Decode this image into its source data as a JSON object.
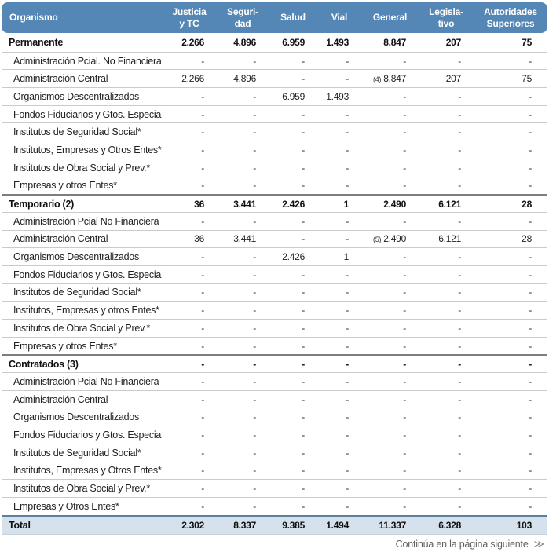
{
  "colors": {
    "header_bg": "#5587b6",
    "header_text": "#ffffff",
    "total_row_bg": "#d5e1ec",
    "total_border": "#5d7e9c",
    "row_separator": "#cbcbcb",
    "section_separator": "#7d7d7d",
    "body_text": "#222222",
    "footer_text": "#5f5f5f"
  },
  "table": {
    "header": {
      "organismo": "Organismo",
      "columns": [
        "Justicia\ny TC",
        "Seguri-\ndad",
        "Salud",
        "Vial",
        "General",
        "Legisla-\ntivo",
        "Autoridades\nSuperiores"
      ]
    },
    "rows": [
      {
        "label": "Permanente",
        "type": "section",
        "values": [
          "2.266",
          "4.896",
          "6.959",
          "1.493",
          "8.847",
          "207",
          "75"
        ]
      },
      {
        "label": "Administración Pcial. No Financiera",
        "type": "sub",
        "values": [
          "-",
          "-",
          "-",
          "-",
          "-",
          "-",
          "-"
        ]
      },
      {
        "label": "Administración Central",
        "type": "sub",
        "values": [
          "2.266",
          "4.896",
          "-",
          "-",
          "(4) 8.847",
          "207",
          "75"
        ]
      },
      {
        "label": "Organismos Descentralizados",
        "type": "sub",
        "values": [
          "-",
          "-",
          "6.959",
          "1.493",
          "-",
          "-",
          "-"
        ]
      },
      {
        "label": "Fondos Fiduciarios y Gtos. Especiales",
        "type": "sub",
        "values": [
          "-",
          "-",
          "-",
          "-",
          "-",
          "-",
          "-"
        ]
      },
      {
        "label": "Institutos de Seguridad Social*",
        "type": "sub",
        "values": [
          "-",
          "-",
          "-",
          "-",
          "-",
          "-",
          "-"
        ]
      },
      {
        "label": "Institutos, Empresas y Otros Entes*",
        "type": "sub",
        "values": [
          "-",
          "-",
          "-",
          "-",
          "-",
          "-",
          "-"
        ]
      },
      {
        "label": "Institutos de Obra Social y Prev.*",
        "type": "sub",
        "values": [
          "-",
          "-",
          "-",
          "-",
          "-",
          "-",
          "-"
        ]
      },
      {
        "label": "Empresas y otros Entes*",
        "type": "sub",
        "values": [
          "-",
          "-",
          "-",
          "-",
          "-",
          "-",
          "-"
        ]
      },
      {
        "label": "Temporario (2)",
        "type": "section",
        "values": [
          "36",
          "3.441",
          "2.426",
          "1",
          "2.490",
          "6.121",
          "28"
        ]
      },
      {
        "label": "Administración Pcial No Financiera",
        "type": "sub",
        "values": [
          "-",
          "-",
          "-",
          "-",
          "-",
          "-",
          "-"
        ]
      },
      {
        "label": "Administración Central",
        "type": "sub",
        "values": [
          "36",
          "3.441",
          "-",
          "-",
          "(5) 2.490",
          "6.121",
          "28"
        ]
      },
      {
        "label": "Organismos Descentralizados",
        "type": "sub",
        "values": [
          "-",
          "-",
          "2.426",
          "1",
          "-",
          "-",
          "-"
        ]
      },
      {
        "label": "Fondos Fiduciarios y Gtos. Especiales",
        "type": "sub",
        "values": [
          "-",
          "-",
          "-",
          "-",
          "-",
          "-",
          "-"
        ]
      },
      {
        "label": "Institutos de Seguridad Social*",
        "type": "sub",
        "values": [
          "-",
          "-",
          "-",
          "-",
          "-",
          "-",
          "-"
        ]
      },
      {
        "label": "Institutos, Empresas y otros Entes*",
        "type": "sub",
        "values": [
          "-",
          "-",
          "-",
          "-",
          "-",
          "-",
          "-"
        ]
      },
      {
        "label": "Institutos de Obra Social y Prev.*",
        "type": "sub",
        "values": [
          "-",
          "-",
          "-",
          "-",
          "-",
          "-",
          "-"
        ]
      },
      {
        "label": "Empresas y otros Entes*",
        "type": "sub",
        "values": [
          "-",
          "-",
          "-",
          "-",
          "-",
          "-",
          "-"
        ]
      },
      {
        "label": "Contratados (3)",
        "type": "section",
        "values": [
          "-",
          "-",
          "-",
          "-",
          "-",
          "-",
          "-"
        ]
      },
      {
        "label": "Administración Pcial No Financiera",
        "type": "sub",
        "values": [
          "-",
          "-",
          "-",
          "-",
          "-",
          "-",
          "-"
        ]
      },
      {
        "label": "Administración Central",
        "type": "sub",
        "values": [
          "-",
          "-",
          "-",
          "-",
          "-",
          "-",
          "-"
        ]
      },
      {
        "label": "Organismos Descentralizados",
        "type": "sub",
        "values": [
          "-",
          "-",
          "-",
          "-",
          "-",
          "-",
          "-"
        ]
      },
      {
        "label": "Fondos Fiduciarios y Gtos. Especiales",
        "type": "sub",
        "values": [
          "-",
          "-",
          "-",
          "-",
          "-",
          "-",
          "-"
        ]
      },
      {
        "label": "Institutos de Seguridad Social*",
        "type": "sub",
        "values": [
          "-",
          "-",
          "-",
          "-",
          "-",
          "-",
          "-"
        ]
      },
      {
        "label": "Institutos, Empresas y Otros Entes*",
        "type": "sub",
        "values": [
          "-",
          "-",
          "-",
          "-",
          "-",
          "-",
          "-"
        ]
      },
      {
        "label": "Institutos de Obra Social y Prev.*",
        "type": "sub",
        "values": [
          "-",
          "-",
          "-",
          "-",
          "-",
          "-",
          "-"
        ]
      },
      {
        "label": "Empresas y Otros Entes*",
        "type": "sub",
        "values": [
          "-",
          "-",
          "-",
          "-",
          "-",
          "-",
          "-"
        ]
      }
    ],
    "total": {
      "label": "Total",
      "values": [
        "2.302",
        "8.337",
        "9.385",
        "1.494",
        "11.337",
        "6.328",
        "103"
      ]
    }
  },
  "footer": {
    "note": "Continúa en la página siguiente",
    "icon": "≫"
  }
}
